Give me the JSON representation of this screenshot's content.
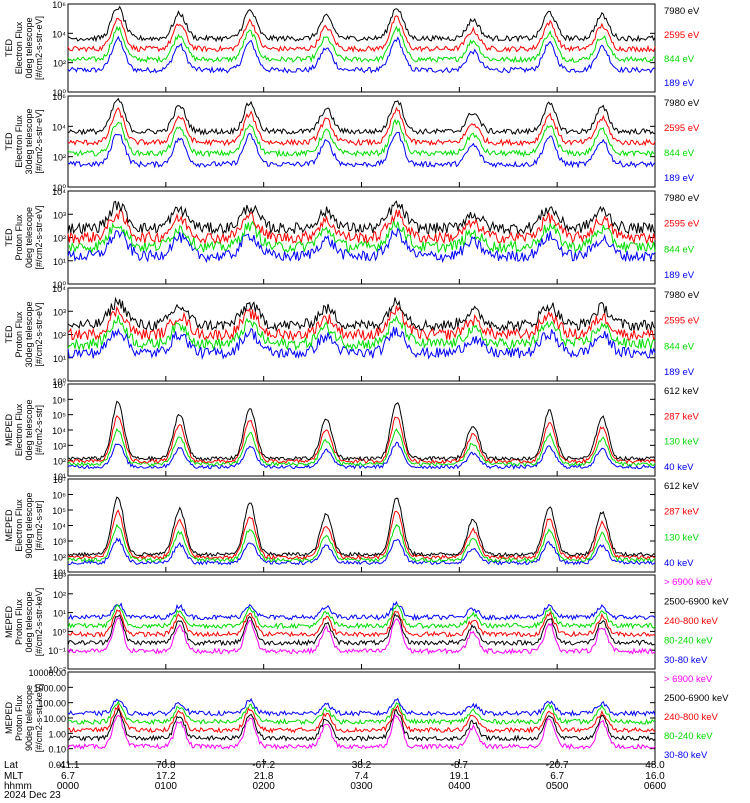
{
  "colors": {
    "blue": "#0000ff",
    "red": "#ff0000",
    "green": "#00dd00",
    "black": "#000000",
    "magenta": "#ff00ff"
  },
  "chart_data": [
    {
      "type": "line",
      "panel": "ted-electron-0deg",
      "ylabel": [
        "TED",
        "Electron Flux",
        "0deg telescope",
        "[#/cm2-s-str-eV]"
      ],
      "yticks": [
        "10⁶",
        "10⁴",
        "10²",
        "10⁰"
      ],
      "ylim": [
        0,
        6
      ],
      "series": [
        {
          "name": "7980 eV",
          "color": "#000000"
        },
        {
          "name": "2595 eV",
          "color": "#ff0000"
        },
        {
          "name": "844 eV",
          "color": "#00dd00"
        },
        {
          "name": "189 eV",
          "color": "#0000ff"
        }
      ]
    },
    {
      "type": "line",
      "panel": "ted-electron-30deg",
      "ylabel": [
        "TED",
        "Electron Flux",
        "30deg telescope",
        "[#/cm2-s-str-eV]"
      ],
      "yticks": [
        "10⁶",
        "10⁴",
        "10²",
        "10⁰"
      ],
      "ylim": [
        0,
        6
      ],
      "series": [
        {
          "name": "7980 eV",
          "color": "#000000"
        },
        {
          "name": "2595 eV",
          "color": "#ff0000"
        },
        {
          "name": "844 eV",
          "color": "#00dd00"
        },
        {
          "name": "189 eV",
          "color": "#0000ff"
        }
      ]
    },
    {
      "type": "line",
      "panel": "ted-proton-0deg",
      "ylabel": [
        "TED",
        "Proton Flux",
        "0deg telescope",
        "[#/cm2-s-str-eV]"
      ],
      "yticks": [
        "10⁴",
        "10³",
        "10²",
        "10¹",
        "10⁰"
      ],
      "ylim": [
        0,
        4
      ],
      "series": [
        {
          "name": "7980 eV",
          "color": "#000000"
        },
        {
          "name": "2595 eV",
          "color": "#ff0000"
        },
        {
          "name": "844 eV",
          "color": "#00dd00"
        },
        {
          "name": "189 eV",
          "color": "#0000ff"
        }
      ]
    },
    {
      "type": "line",
      "panel": "ted-proton-30deg",
      "ylabel": [
        "TED",
        "Proton Flux",
        "30deg telescope",
        "[#/cm2-s-str-eV]"
      ],
      "yticks": [
        "10⁴",
        "10³",
        "10²",
        "10¹",
        "10⁰"
      ],
      "ylim": [
        0,
        4
      ],
      "series": [
        {
          "name": "7980 eV",
          "color": "#000000"
        },
        {
          "name": "2595 eV",
          "color": "#ff0000"
        },
        {
          "name": "844 eV",
          "color": "#00dd00"
        },
        {
          "name": "189 eV",
          "color": "#0000ff"
        }
      ]
    },
    {
      "type": "line",
      "panel": "meped-electron-0deg",
      "ylabel": [
        "MEPED",
        "Electron Flux",
        "0deg telescope",
        "[#/cm2-s-str]"
      ],
      "yticks": [
        "10⁷",
        "10⁶",
        "10⁵",
        "10⁴",
        "10³",
        "10²",
        "10¹"
      ],
      "ylim": [
        1,
        7
      ],
      "series": [
        {
          "name": "612 keV",
          "color": "#000000"
        },
        {
          "name": "287 keV",
          "color": "#ff0000"
        },
        {
          "name": "130 keV",
          "color": "#00dd00"
        },
        {
          "name": "40 keV",
          "color": "#0000ff"
        }
      ]
    },
    {
      "type": "line",
      "panel": "meped-electron-90deg",
      "ylabel": [
        "MEPED",
        "Electron Flux",
        "90deg telescope",
        "[#/cm2-s-str]"
      ],
      "yticks": [
        "10⁷",
        "10⁶",
        "10⁵",
        "10⁴",
        "10³",
        "10²",
        "10¹"
      ],
      "ylim": [
        1,
        7
      ],
      "series": [
        {
          "name": "612 keV",
          "color": "#000000"
        },
        {
          "name": "287 keV",
          "color": "#ff0000"
        },
        {
          "name": "130 keV",
          "color": "#00dd00"
        },
        {
          "name": "40 keV",
          "color": "#0000ff"
        }
      ]
    },
    {
      "type": "line",
      "panel": "meped-proton-0deg",
      "ylabel": [
        "MEPED",
        "Proton Flux",
        "0deg telescope",
        "[#/cm2-s-str-keV]"
      ],
      "yticks": [
        "10³",
        "10²",
        "10¹",
        "10⁰",
        "10⁻¹",
        "10⁻²"
      ],
      "ylim": [
        -2,
        3
      ],
      "series": [
        {
          "name": "> 6900 keV",
          "color": "#ff00ff"
        },
        {
          "name": "2500-6900 keV",
          "color": "#000000"
        },
        {
          "name": "240-800 keV",
          "color": "#ff0000"
        },
        {
          "name": "80-240 keV",
          "color": "#00dd00"
        },
        {
          "name": "30-80 keV",
          "color": "#0000ff"
        }
      ]
    },
    {
      "type": "line",
      "panel": "meped-proton-90deg",
      "ylabel": [
        "MEPED",
        "Proton Flux",
        "90deg telescope",
        "[#/cm2-s-str-keV]"
      ],
      "yticks": [
        "10000.00",
        "1000.00",
        "100.00",
        "10.00",
        "1.00",
        "0.10",
        "0.01"
      ],
      "ylim": [
        -2,
        4
      ],
      "series": [
        {
          "name": "> 6900 keV",
          "color": "#ff00ff"
        },
        {
          "name": "2500-6900 keV",
          "color": "#000000"
        },
        {
          "name": "240-800 keV",
          "color": "#ff0000"
        },
        {
          "name": "80-240 keV",
          "color": "#00dd00"
        },
        {
          "name": "30-80 keV",
          "color": "#0000ff"
        }
      ]
    }
  ],
  "x_axis": {
    "row_labels": [
      "Lat",
      "MLT",
      "hhmm",
      "2024 Dec 23"
    ],
    "ticks": [
      {
        "lat": "-41.1",
        "mlt": "6.7",
        "hhmm": "0000"
      },
      {
        "lat": "70.8",
        "mlt": "17.2",
        "hhmm": "0100"
      },
      {
        "lat": "-67.2",
        "mlt": "21.8",
        "hhmm": "0200"
      },
      {
        "lat": "38.2",
        "mlt": "7.4",
        "hhmm": "0300"
      },
      {
        "lat": "-8.7",
        "mlt": "19.1",
        "hhmm": "0400"
      },
      {
        "lat": "-20.7",
        "mlt": "6.7",
        "hhmm": "0500"
      },
      {
        "lat": "48.0",
        "mlt": "16.0",
        "hhmm": "0600"
      }
    ],
    "xlim": [
      "0000",
      "0600"
    ]
  }
}
